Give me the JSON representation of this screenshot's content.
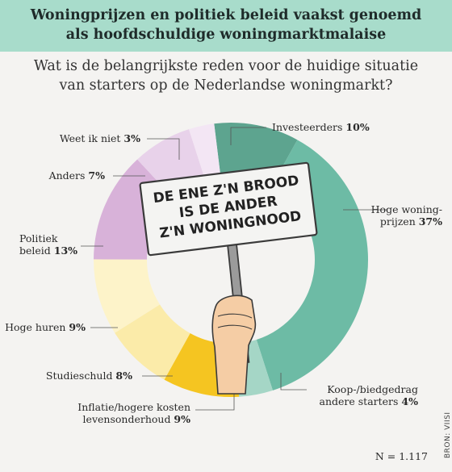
{
  "header": {
    "title_line1": "Woningprijzen en politiek beleid vaakst genoemd",
    "title_line2": "als hoofdschuldige woningmarktmalaise"
  },
  "subtitle_line1": "Wat is de belangrijkste reden voor de huidige situatie",
  "subtitle_line2": "van starters op de Nederlandse woningmarkt?",
  "sign_text": [
    "DE ENE Z'N BROOD",
    "IS DE ANDER",
    "Z'N WONINGNOOD"
  ],
  "footer": {
    "n": "N = 1.117",
    "source": "BRON: VIISI"
  },
  "chart_data": {
    "type": "pie",
    "title": "Woningprijzen en politiek beleid vaakst genoemd als hoofdschuldige woningmarktmalaise",
    "subtitle": "Wat is de belangrijkste reden voor de huidige situatie van starters op de Nederlandse woningmarkt?",
    "unit": "%",
    "slices": [
      {
        "label": "Investeerders",
        "value": 10,
        "color": "#5da48f"
      },
      {
        "label": "Hoge woningprijzen",
        "value": 37,
        "color": "#6dbba5"
      },
      {
        "label": "Koop-/biedgedrag andere starters",
        "value": 4,
        "color": "#a5d6c6"
      },
      {
        "label": "Inflatie/hogere kosten levensonderhoud",
        "value": 9,
        "color": "#f5c521"
      },
      {
        "label": "Studieschuld",
        "value": 8,
        "color": "#fbeba9"
      },
      {
        "label": "Hoge huren",
        "value": 9,
        "color": "#fdf3c9"
      },
      {
        "label": "Politiek beleid",
        "value": 13,
        "color": "#d8b2d9"
      },
      {
        "label": "Anders",
        "value": 7,
        "color": "#e8d2ea"
      },
      {
        "label": "Weet ik niet",
        "value": 3,
        "color": "#f3e6f4"
      }
    ],
    "labels": [
      {
        "lines": [
          "Investeerders"
        ],
        "pct": "10%"
      },
      {
        "lines": [
          "Hoge woning-",
          "prijzen"
        ],
        "pct": "37%"
      },
      {
        "lines": [
          "Koop-/biedgedrag",
          "andere starters"
        ],
        "pct": "4%"
      },
      {
        "lines": [
          "Inflatie/hogere kosten",
          "levensonderhoud"
        ],
        "pct": "9%"
      },
      {
        "lines": [
          "Studieschuld"
        ],
        "pct": "8%"
      },
      {
        "lines": [
          "Hoge huren"
        ],
        "pct": "9%"
      },
      {
        "lines": [
          "Politiek",
          "beleid"
        ],
        "pct": "13%"
      },
      {
        "lines": [
          "Anders"
        ],
        "pct": "7%"
      },
      {
        "lines": [
          "Weet ik niet"
        ],
        "pct": "3%"
      }
    ],
    "n": 1117
  }
}
